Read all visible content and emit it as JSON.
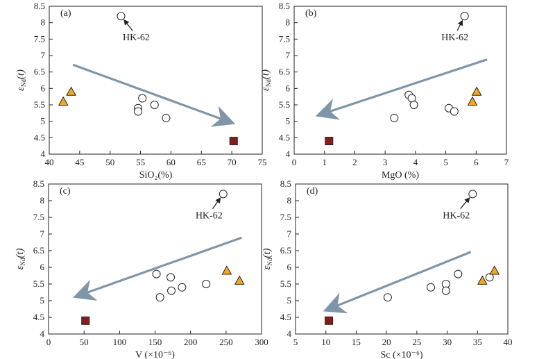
{
  "figure": "Four-panel scatter plots of eNd(t) versus SiO2, MgO, V and Sc",
  "colors": {
    "arrow": "#7f96a9",
    "triangle_fill": "#f5a623",
    "square_fill": "#8b1a1a",
    "circle_fill": "#ffffff",
    "axis": "#222222"
  },
  "chart_data": [
    {
      "type": "scatter",
      "panel_label": "(a)",
      "xlabel": "SiO₂(%)",
      "ylabel_main": "ε",
      "ylabel_sub": "Nd",
      "ylabel_tail": "(t)",
      "xlim": [
        40,
        75
      ],
      "ylim": [
        4,
        8.5
      ],
      "xticks": [
        40,
        45,
        50,
        55,
        60,
        65,
        70,
        75
      ],
      "yticks": [
        4,
        4.5,
        5,
        5.5,
        6,
        6.5,
        7,
        7.5,
        8,
        8.5
      ],
      "series": [
        {
          "name": "circles",
          "marker": "circle",
          "x": [
            51.8,
            55.3,
            54.6,
            57.3,
            54.6,
            59.2
          ],
          "y": [
            8.2,
            5.7,
            5.4,
            5.5,
            5.3,
            5.1
          ]
        },
        {
          "name": "triangles",
          "marker": "triangle",
          "x": [
            42.3,
            43.6
          ],
          "y": [
            5.6,
            5.9
          ]
        },
        {
          "name": "squares",
          "marker": "square",
          "x": [
            70.3
          ],
          "y": [
            4.4
          ]
        }
      ],
      "annotation": {
        "text": "HK-62",
        "point": [
          51.8,
          8.2
        ],
        "label_at": [
          54.3,
          7.55
        ]
      },
      "trend_arrow": {
        "from": [
          43.9,
          6.72
        ],
        "to": [
          69.2,
          5.01
        ]
      }
    },
    {
      "type": "scatter",
      "panel_label": "(b)",
      "xlabel": "MgO (%)",
      "ylabel_main": "ε",
      "ylabel_sub": "Nd",
      "ylabel_tail": "(t)",
      "xlim": [
        0,
        7
      ],
      "ylim": [
        4,
        8.5
      ],
      "xticks": [
        0,
        1,
        2,
        3,
        4,
        5,
        6,
        7
      ],
      "yticks": [
        4,
        4.5,
        5,
        5.5,
        6,
        6.5,
        7,
        7.5,
        8,
        8.5
      ],
      "series": [
        {
          "name": "circles",
          "marker": "circle",
          "x": [
            5.62,
            3.78,
            3.88,
            3.95,
            5.1,
            5.28,
            3.3
          ],
          "y": [
            8.2,
            5.8,
            5.7,
            5.5,
            5.4,
            5.3,
            5.1
          ]
        },
        {
          "name": "triangles",
          "marker": "triangle",
          "x": [
            5.88,
            6.02
          ],
          "y": [
            5.6,
            5.9
          ]
        },
        {
          "name": "squares",
          "marker": "square",
          "x": [
            1.15
          ],
          "y": [
            4.4
          ]
        }
      ],
      "annotation": {
        "text": "HK-62",
        "point": [
          5.62,
          8.2
        ],
        "label_at": [
          5.3,
          7.55
        ]
      },
      "trend_arrow": {
        "from": [
          6.36,
          6.88
        ],
        "to": [
          0.98,
          5.24
        ]
      }
    },
    {
      "type": "scatter",
      "panel_label": "(c)",
      "xlabel": "V (×10⁻⁶)",
      "ylabel_main": "ε",
      "ylabel_sub": "Nd",
      "ylabel_tail": "(t)",
      "xlim": [
        0,
        300
      ],
      "ylim": [
        4,
        8.5
      ],
      "xticks": [
        0,
        50,
        100,
        150,
        200,
        250,
        300
      ],
      "yticks": [
        4,
        4.5,
        5,
        5.5,
        6,
        6.5,
        7,
        7.5,
        8,
        8.5
      ],
      "series": [
        {
          "name": "circles",
          "marker": "circle",
          "x": [
            246,
            152,
            172,
            222,
            188,
            173,
            157
          ],
          "y": [
            8.2,
            5.8,
            5.7,
            5.5,
            5.4,
            5.3,
            5.1
          ]
        },
        {
          "name": "triangles",
          "marker": "triangle",
          "x": [
            251,
            269
          ],
          "y": [
            5.9,
            5.6
          ]
        },
        {
          "name": "squares",
          "marker": "square",
          "x": [
            52
          ],
          "y": [
            4.4
          ]
        }
      ],
      "annotation": {
        "text": "HK-62",
        "point": [
          246,
          8.2
        ],
        "label_at": [
          226,
          7.55
        ]
      },
      "trend_arrow": {
        "from": [
          272,
          6.89
        ],
        "to": [
          46,
          5.18
        ]
      }
    },
    {
      "type": "scatter",
      "panel_label": "(d)",
      "xlabel": "Sc (×10⁻⁶)",
      "ylabel_main": "ε",
      "ylabel_sub": "Nd",
      "ylabel_tail": "(t)",
      "xlim": [
        5,
        40
      ],
      "ylim": [
        4,
        8.5
      ],
      "xticks": [
        5,
        10,
        15,
        20,
        25,
        30,
        35,
        40
      ],
      "yticks": [
        4,
        4.5,
        5,
        5.5,
        6,
        6.5,
        7,
        7.5,
        8,
        8.5
      ],
      "series": [
        {
          "name": "circles",
          "marker": "circle",
          "x": [
            34.2,
            31.8,
            37.0,
            29.8,
            27.3,
            29.8,
            20.2
          ],
          "y": [
            8.2,
            5.8,
            5.7,
            5.5,
            5.4,
            5.3,
            5.1
          ]
        },
        {
          "name": "triangles",
          "marker": "triangle",
          "x": [
            35.8,
            37.8
          ],
          "y": [
            5.6,
            5.9
          ]
        },
        {
          "name": "squares",
          "marker": "square",
          "x": [
            10.5
          ],
          "y": [
            4.4
          ]
        }
      ],
      "annotation": {
        "text": "HK-62",
        "point": [
          34.2,
          8.2
        ],
        "label_at": [
          31.5,
          7.55
        ]
      },
      "trend_arrow": {
        "from": [
          33.9,
          6.46
        ],
        "to": [
          10.9,
          4.78
        ]
      }
    }
  ]
}
